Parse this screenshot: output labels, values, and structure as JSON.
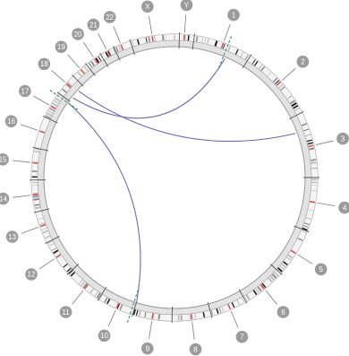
{
  "diagram": {
    "ring_colors": {
      "outline": "#9a9a9a",
      "inner_ring": "#e3e3e3",
      "band_dark": "#1a1a1a",
      "band_mid": "#8c8c8c",
      "band_light": "#bdbdbd",
      "centromere": "#d9534f",
      "label_disc": "#9b9b9b",
      "label_text": "#ffffff",
      "link": "#6a6ab8",
      "leader": "#7a7a7a",
      "break_marker": "#3a9a78"
    },
    "chromosomes": [
      {
        "name": "1",
        "angle": 20
      },
      {
        "name": "2",
        "angle": 48
      },
      {
        "name": "3",
        "angle": 77
      },
      {
        "name": "4",
        "angle": 100
      },
      {
        "name": "5",
        "angle": 122
      },
      {
        "name": "6",
        "angle": 141
      },
      {
        "name": "7",
        "angle": 157
      },
      {
        "name": "8",
        "angle": 173
      },
      {
        "name": "9",
        "angle": 189
      },
      {
        "name": "10",
        "angle": 204
      },
      {
        "name": "11",
        "angle": 219
      },
      {
        "name": "12",
        "angle": 236
      },
      {
        "name": "13",
        "angle": 250
      },
      {
        "name": "14",
        "angle": 263
      },
      {
        "name": "15",
        "angle": 276
      },
      {
        "name": "16",
        "angle": 289
      },
      {
        "name": "17",
        "angle": 300
      },
      {
        "name": "18",
        "angle": 311
      },
      {
        "name": "19",
        "angle": 319
      },
      {
        "name": "20",
        "angle": 326
      },
      {
        "name": "21",
        "angle": 332
      },
      {
        "name": "22",
        "angle": 338
      },
      {
        "name": "X",
        "angle": 351
      },
      {
        "name": "Y",
        "angle": 4
      }
    ],
    "boundaries": [
      8,
      32,
      63,
      90,
      112,
      132,
      150,
      165,
      181,
      197,
      212,
      228,
      243,
      256,
      269,
      282,
      295,
      306,
      315,
      322,
      329,
      335,
      342,
      2
    ],
    "links": [
      {
        "from": 308,
        "to": 23
      },
      {
        "from": 312,
        "to": 70
      },
      {
        "from": 305,
        "to": 197
      }
    ],
    "break_markers": [
      22,
      198,
      305
    ]
  }
}
